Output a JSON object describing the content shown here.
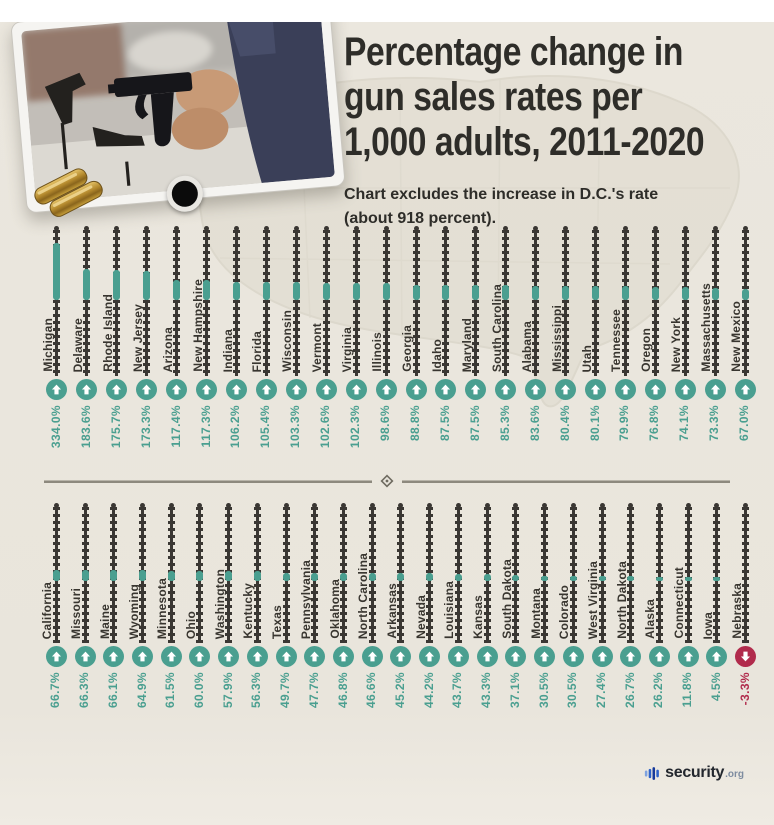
{
  "colors": {
    "teal": "#4a9f90",
    "negative_red": "#b12b4c",
    "wire": "#3a3733",
    "title_text": "#2e2d29",
    "background": "#eae6dd"
  },
  "header": {
    "title_lines": [
      "Percentage change in",
      "gun sales rates per",
      "1,000 adults, 2011-2020"
    ],
    "subtitle_lines": [
      "Chart excludes the increase in D.C.'s rate",
      "(about 918 percent)."
    ]
  },
  "chart_data": {
    "type": "bar",
    "title": "Percentage change in gun sales rates per 1,000 adults, 2011-2020",
    "note": "Chart excludes the increase in D.C.'s rate (about 918 percent).",
    "unit": "percent",
    "orientation": "vertical barbed-wire bars, two stacked rows, sorted descending",
    "rows": [
      {
        "categories": [
          "Michigan",
          "Delaware",
          "Rhode Island",
          "New Jersey",
          "Arizona",
          "New Hampshire",
          "Indiana",
          "Florida",
          "Wisconsin",
          "Vermont",
          "Virginia",
          "Illinois",
          "Georgia",
          "Idaho",
          "Maryland",
          "South Carolina",
          "Alabama",
          "Mississippi",
          "Utah",
          "Tennessee",
          "Oregon",
          "New York",
          "Massachusetts",
          "New Mexico"
        ],
        "values": [
          334.0,
          183.6,
          175.7,
          173.3,
          117.4,
          117.3,
          106.2,
          105.4,
          103.3,
          102.6,
          102.3,
          98.6,
          88.8,
          87.5,
          87.5,
          85.3,
          83.6,
          80.4,
          80.1,
          79.9,
          76.8,
          74.1,
          73.3,
          67.0
        ]
      },
      {
        "categories": [
          "California",
          "Missouri",
          "Maine",
          "Wyoming",
          "Minnesota",
          "Ohio",
          "Washington",
          "Kentucky",
          "Texas",
          "Pennsylvania",
          "Oklahoma",
          "North Carolina",
          "Arkansas",
          "Nevada",
          "Louisiana",
          "Kansas",
          "South Dakota",
          "Montana",
          "Colorado",
          "West Virginia",
          "North Dakota",
          "Alaska",
          "Connecticut",
          "Iowa",
          "Nebraska"
        ],
        "values": [
          66.7,
          66.3,
          66.1,
          64.9,
          61.5,
          60.0,
          57.9,
          56.3,
          49.7,
          47.7,
          46.8,
          46.6,
          45.2,
          44.2,
          43.7,
          43.3,
          37.1,
          30.5,
          30.5,
          27.4,
          26.7,
          26.2,
          11.8,
          4.5,
          -3.3
        ]
      }
    ]
  },
  "footer": {
    "brand": "security",
    "tld": ".org"
  }
}
